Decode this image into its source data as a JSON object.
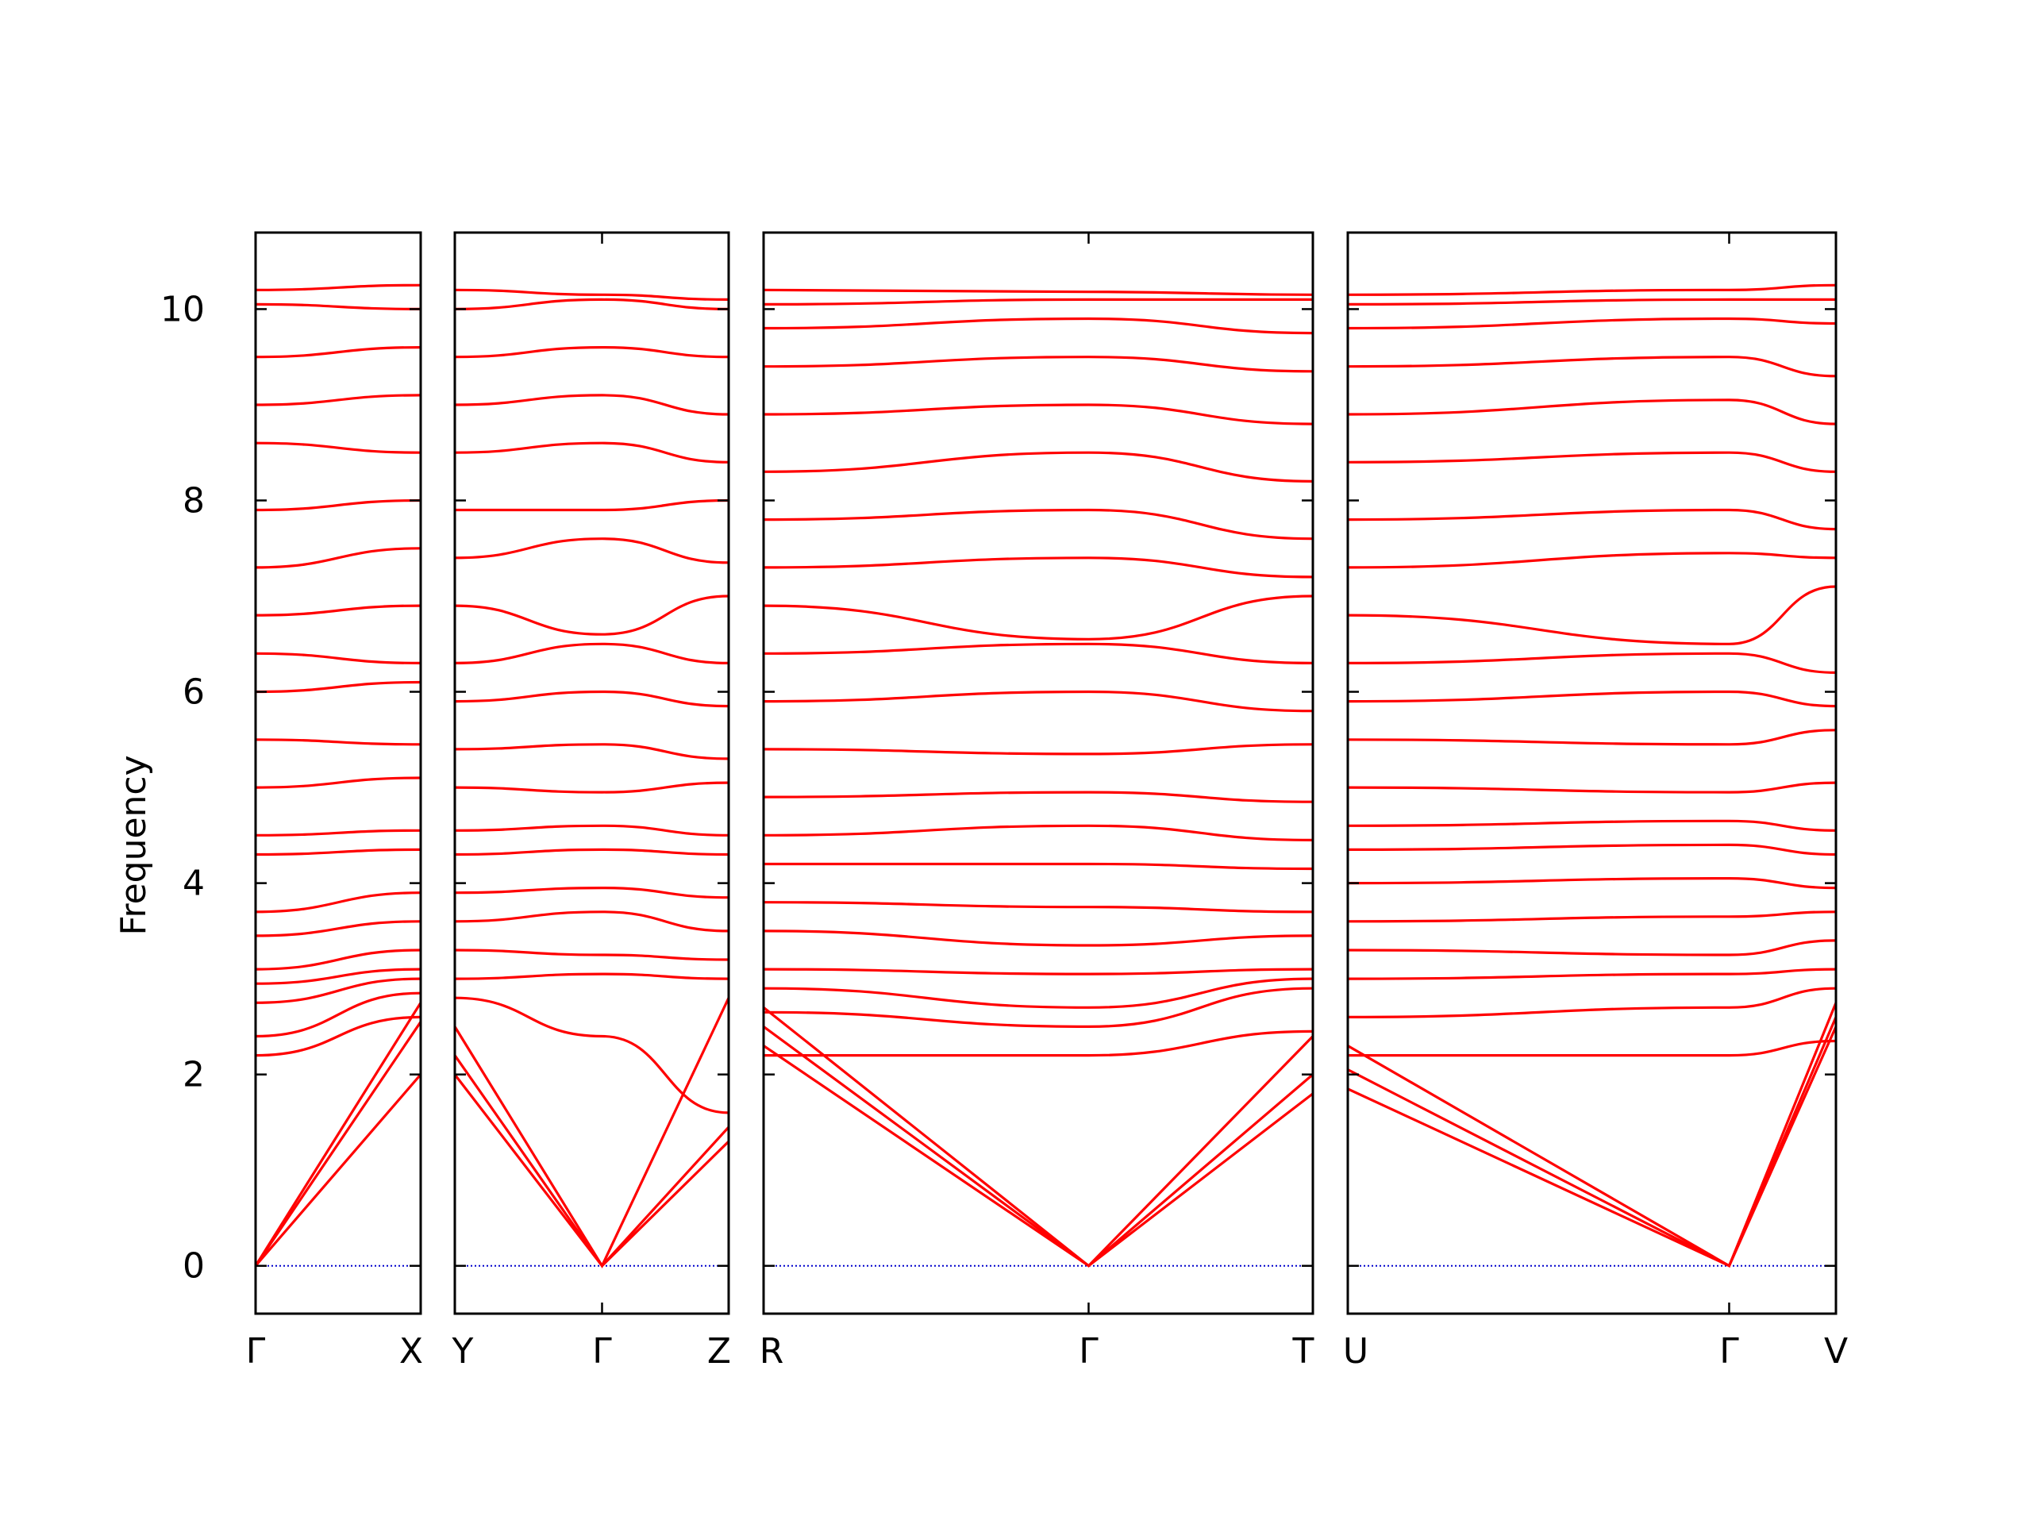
{
  "chart_data": {
    "type": "line",
    "ylabel": "Frequency",
    "ylim": [
      -0.5,
      10.8
    ],
    "yticks": [
      0,
      2,
      4,
      6,
      8,
      10
    ],
    "grid": false,
    "colors": {
      "bands": "#ff0000",
      "zero_line": "#0000cc",
      "frame": "#000000"
    },
    "panels": [
      {
        "labels": [
          "Γ",
          "X"
        ],
        "x": [
          0,
          1
        ],
        "series": [
          {
            "values": [
              0,
              2.0
            ]
          },
          {
            "values": [
              0,
              2.55
            ]
          },
          {
            "values": [
              0,
              2.75
            ]
          },
          {
            "values": [
              2.2,
              2.6
            ]
          },
          {
            "values": [
              2.4,
              2.85
            ]
          },
          {
            "values": [
              2.75,
              3.0
            ]
          },
          {
            "values": [
              2.95,
              3.1
            ]
          },
          {
            "values": [
              3.1,
              3.3
            ]
          },
          {
            "values": [
              3.45,
              3.6
            ]
          },
          {
            "values": [
              3.7,
              3.9
            ]
          },
          {
            "values": [
              4.3,
              4.35
            ]
          },
          {
            "values": [
              4.5,
              4.55
            ]
          },
          {
            "values": [
              5.0,
              5.1
            ]
          },
          {
            "values": [
              5.5,
              5.45
            ]
          },
          {
            "values": [
              6.0,
              6.1
            ]
          },
          {
            "values": [
              6.4,
              6.3
            ]
          },
          {
            "values": [
              6.8,
              6.9
            ]
          },
          {
            "values": [
              7.3,
              7.5
            ]
          },
          {
            "values": [
              7.9,
              8.0
            ]
          },
          {
            "values": [
              8.6,
              8.5
            ]
          },
          {
            "values": [
              9.0,
              9.1
            ]
          },
          {
            "values": [
              9.5,
              9.6
            ]
          },
          {
            "values": [
              10.05,
              10.0
            ]
          },
          {
            "values": [
              10.2,
              10.25
            ]
          }
        ]
      },
      {
        "labels": [
          "Y",
          "Γ",
          "Z"
        ],
        "x": [
          0,
          1,
          1.86
        ],
        "series": [
          {
            "values": [
              2.0,
              0,
              1.3
            ]
          },
          {
            "values": [
              2.2,
              0,
              1.45
            ]
          },
          {
            "values": [
              2.5,
              0,
              2.8
            ]
          },
          {
            "values": [
              2.8,
              2.4,
              1.6
            ]
          },
          {
            "values": [
              3.0,
              3.05,
              3.0
            ]
          },
          {
            "values": [
              3.3,
              3.25,
              3.2
            ]
          },
          {
            "values": [
              3.6,
              3.7,
              3.5
            ]
          },
          {
            "values": [
              3.9,
              3.95,
              3.85
            ]
          },
          {
            "values": [
              4.3,
              4.35,
              4.3
            ]
          },
          {
            "values": [
              4.55,
              4.6,
              4.5
            ]
          },
          {
            "values": [
              5.0,
              4.95,
              5.05
            ]
          },
          {
            "values": [
              5.4,
              5.45,
              5.3
            ]
          },
          {
            "values": [
              5.9,
              6.0,
              5.85
            ]
          },
          {
            "values": [
              6.3,
              6.5,
              6.3
            ]
          },
          {
            "values": [
              6.9,
              6.6,
              7.0
            ]
          },
          {
            "values": [
              7.4,
              7.6,
              7.35
            ]
          },
          {
            "values": [
              7.9,
              7.9,
              8.0
            ]
          },
          {
            "values": [
              8.5,
              8.6,
              8.4
            ]
          },
          {
            "values": [
              9.0,
              9.1,
              8.9
            ]
          },
          {
            "values": [
              9.5,
              9.6,
              9.5
            ]
          },
          {
            "values": [
              10.0,
              10.1,
              10.0
            ]
          },
          {
            "values": [
              10.2,
              10.15,
              10.1
            ]
          }
        ]
      },
      {
        "labels": [
          "R",
          "Γ",
          "T"
        ],
        "x": [
          0,
          1,
          1.69
        ],
        "series": [
          {
            "values": [
              2.3,
              0,
              1.8
            ]
          },
          {
            "values": [
              2.5,
              0,
              2.0
            ]
          },
          {
            "values": [
              2.7,
              0,
              2.4
            ]
          },
          {
            "values": [
              2.2,
              2.2,
              2.45
            ]
          },
          {
            "values": [
              2.65,
              2.5,
              2.9
            ]
          },
          {
            "values": [
              2.9,
              2.7,
              3.0
            ]
          },
          {
            "values": [
              3.1,
              3.05,
              3.1
            ]
          },
          {
            "values": [
              3.5,
              3.35,
              3.45
            ]
          },
          {
            "values": [
              3.8,
              3.75,
              3.7
            ]
          },
          {
            "values": [
              4.2,
              4.2,
              4.15
            ]
          },
          {
            "values": [
              4.5,
              4.6,
              4.45
            ]
          },
          {
            "values": [
              4.9,
              4.95,
              4.85
            ]
          },
          {
            "values": [
              5.4,
              5.35,
              5.45
            ]
          },
          {
            "values": [
              5.9,
              6.0,
              5.8
            ]
          },
          {
            "values": [
              6.4,
              6.5,
              6.3
            ]
          },
          {
            "values": [
              6.9,
              6.55,
              7.0
            ]
          },
          {
            "values": [
              7.3,
              7.4,
              7.2
            ]
          },
          {
            "values": [
              7.8,
              7.9,
              7.6
            ]
          },
          {
            "values": [
              8.3,
              8.5,
              8.2
            ]
          },
          {
            "values": [
              8.9,
              9.0,
              8.8
            ]
          },
          {
            "values": [
              9.4,
              9.5,
              9.35
            ]
          },
          {
            "values": [
              9.8,
              9.9,
              9.75
            ]
          },
          {
            "values": [
              10.05,
              10.1,
              10.1
            ]
          },
          {
            "values": [
              10.2,
              10.18,
              10.15
            ]
          }
        ]
      },
      {
        "labels": [
          "U",
          "Γ",
          "V"
        ],
        "x": [
          0,
          1,
          1.28
        ],
        "series": [
          {
            "values": [
              1.85,
              0,
              2.5
            ]
          },
          {
            "values": [
              2.05,
              0,
              2.6
            ]
          },
          {
            "values": [
              2.3,
              0,
              2.75
            ]
          },
          {
            "values": [
              2.2,
              2.2,
              2.35
            ]
          },
          {
            "values": [
              2.6,
              2.7,
              2.9
            ]
          },
          {
            "values": [
              3.0,
              3.05,
              3.1
            ]
          },
          {
            "values": [
              3.3,
              3.25,
              3.4
            ]
          },
          {
            "values": [
              3.6,
              3.65,
              3.7
            ]
          },
          {
            "values": [
              4.0,
              4.05,
              3.95
            ]
          },
          {
            "values": [
              4.35,
              4.4,
              4.3
            ]
          },
          {
            "values": [
              4.6,
              4.65,
              4.55
            ]
          },
          {
            "values": [
              5.0,
              4.95,
              5.05
            ]
          },
          {
            "values": [
              5.5,
              5.45,
              5.6
            ]
          },
          {
            "values": [
              5.9,
              6.0,
              5.85
            ]
          },
          {
            "values": [
              6.3,
              6.4,
              6.2
            ]
          },
          {
            "values": [
              6.8,
              6.5,
              7.1
            ]
          },
          {
            "values": [
              7.3,
              7.45,
              7.4
            ]
          },
          {
            "values": [
              7.8,
              7.9,
              7.7
            ]
          },
          {
            "values": [
              8.4,
              8.5,
              8.3
            ]
          },
          {
            "values": [
              8.9,
              9.05,
              8.8
            ]
          },
          {
            "values": [
              9.4,
              9.5,
              9.3
            ]
          },
          {
            "values": [
              9.8,
              9.9,
              9.85
            ]
          },
          {
            "values": [
              10.05,
              10.1,
              10.1
            ]
          },
          {
            "values": [
              10.15,
              10.2,
              10.25
            ]
          }
        ]
      }
    ]
  }
}
